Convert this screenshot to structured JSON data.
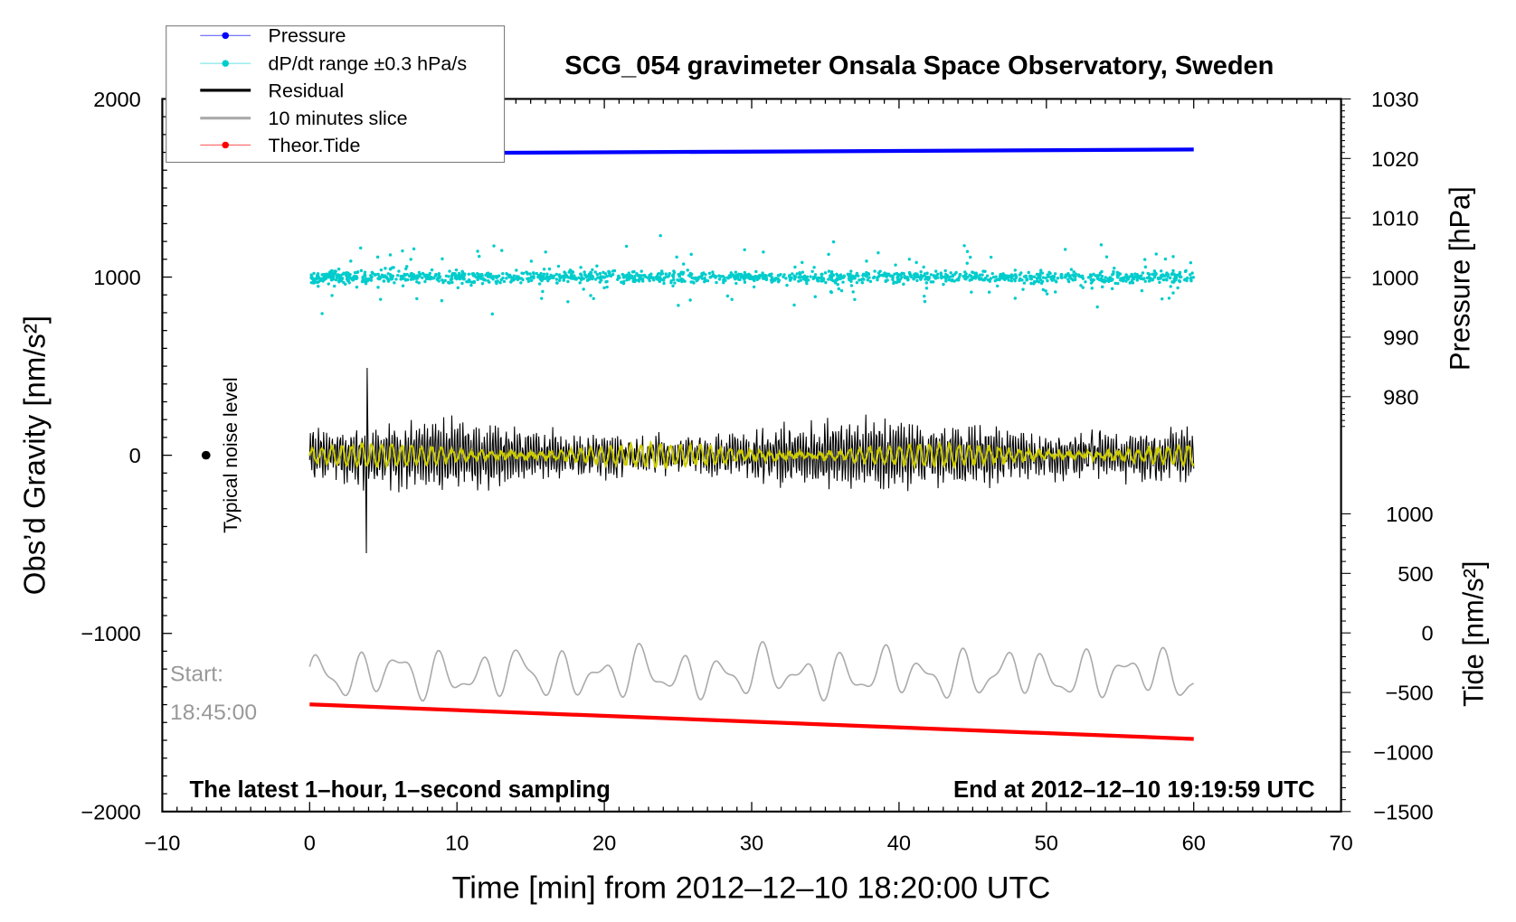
{
  "chart_data": {
    "type": "line",
    "title": "SCG_054 gravimeter Onsala Space Observatory, Sweden",
    "xlabel": "Time [min] from 2012–12–10 18:20:00 UTC",
    "ylabel": "Obs’d Gravity [nm/s²]",
    "ylabel_right_top": "Pressure [hPa]",
    "ylabel_right_bottom": "Tide [nm/s²]",
    "xlim": [
      -10,
      70
    ],
    "ylim": [
      -2000,
      2000
    ],
    "x_ticks": [
      "−10",
      "0",
      "10",
      "20",
      "30",
      "40",
      "50",
      "60",
      "70"
    ],
    "x_tick_values": [
      -10,
      0,
      10,
      20,
      30,
      40,
      50,
      60,
      70
    ],
    "y_ticks": [
      "2000",
      "1000",
      "0",
      "−1000",
      "−2000"
    ],
    "y_tick_values": [
      2000,
      1000,
      0,
      -1000,
      -2000
    ],
    "pressure_ticks": [
      "1030",
      "1020",
      "1010",
      "1000",
      "990",
      "980"
    ],
    "pressure_tick_values": [
      1030,
      1020,
      1010,
      1000,
      990,
      980
    ],
    "tide_ticks": [
      "1000",
      "500",
      "0",
      "−500",
      "−1000",
      "−1500"
    ],
    "tide_tick_values": [
      1000,
      500,
      0,
      -500,
      -1000,
      -1500
    ],
    "legend": {
      "placement": "top-left",
      "entries": [
        {
          "label": "Pressure",
          "color": "#0000ff",
          "marker": true
        },
        {
          "label": "dP/dt range ±0.3 hPa/s",
          "color": "#00cccc",
          "marker": true
        },
        {
          "label": "Residual",
          "color": "#000000",
          "marker": false
        },
        {
          "label": "10 minutes slice",
          "color": "#aaaaaa",
          "marker": false
        },
        {
          "label": "Theor.Tide",
          "color": "#ff0000",
          "marker": true
        }
      ]
    },
    "series": [
      {
        "name": "Pressure",
        "axis": "pressure",
        "x_range": [
          0,
          60
        ],
        "start": 1020.8,
        "end": 1021.5,
        "color": "#0000ff"
      },
      {
        "name": "dP/dt range",
        "axis": "gravity",
        "x_range": [
          0,
          60
        ],
        "center": 1000,
        "spread": 60,
        "outlier_spread": 300,
        "color": "#00cccc"
      },
      {
        "name": "Residual",
        "axis": "gravity",
        "x_range": [
          0,
          60
        ],
        "center": 0,
        "amplitude": 200,
        "spike_at_min": 3.9,
        "spike_range": [
          -550,
          490
        ],
        "color": "#000000"
      },
      {
        "name": "Filtered residual",
        "axis": "gravity",
        "x_range": [
          0,
          60
        ],
        "center": 0,
        "amplitude": 60,
        "color": "#cccc00"
      },
      {
        "name": "10 minutes slice",
        "axis": "gravity",
        "x_range": [
          0,
          60
        ],
        "center": -1230,
        "amplitude": 170,
        "color": "#aaaaaa"
      },
      {
        "name": "Theor.Tide",
        "axis": "tide",
        "x_range": [
          0,
          60
        ],
        "start": -600,
        "end": -890,
        "color": "#ff0000"
      }
    ],
    "annotations": {
      "noise_label": "Typical noise level",
      "noise_marker": {
        "x": -7,
        "y": 0,
        "error": 20
      },
      "start_label": "Start:",
      "start_time": "18:45:00",
      "bottom_left": "The latest 1–hour, 1–second sampling",
      "bottom_right": "End at 2012–12–10 19:19:59 UTC"
    }
  }
}
